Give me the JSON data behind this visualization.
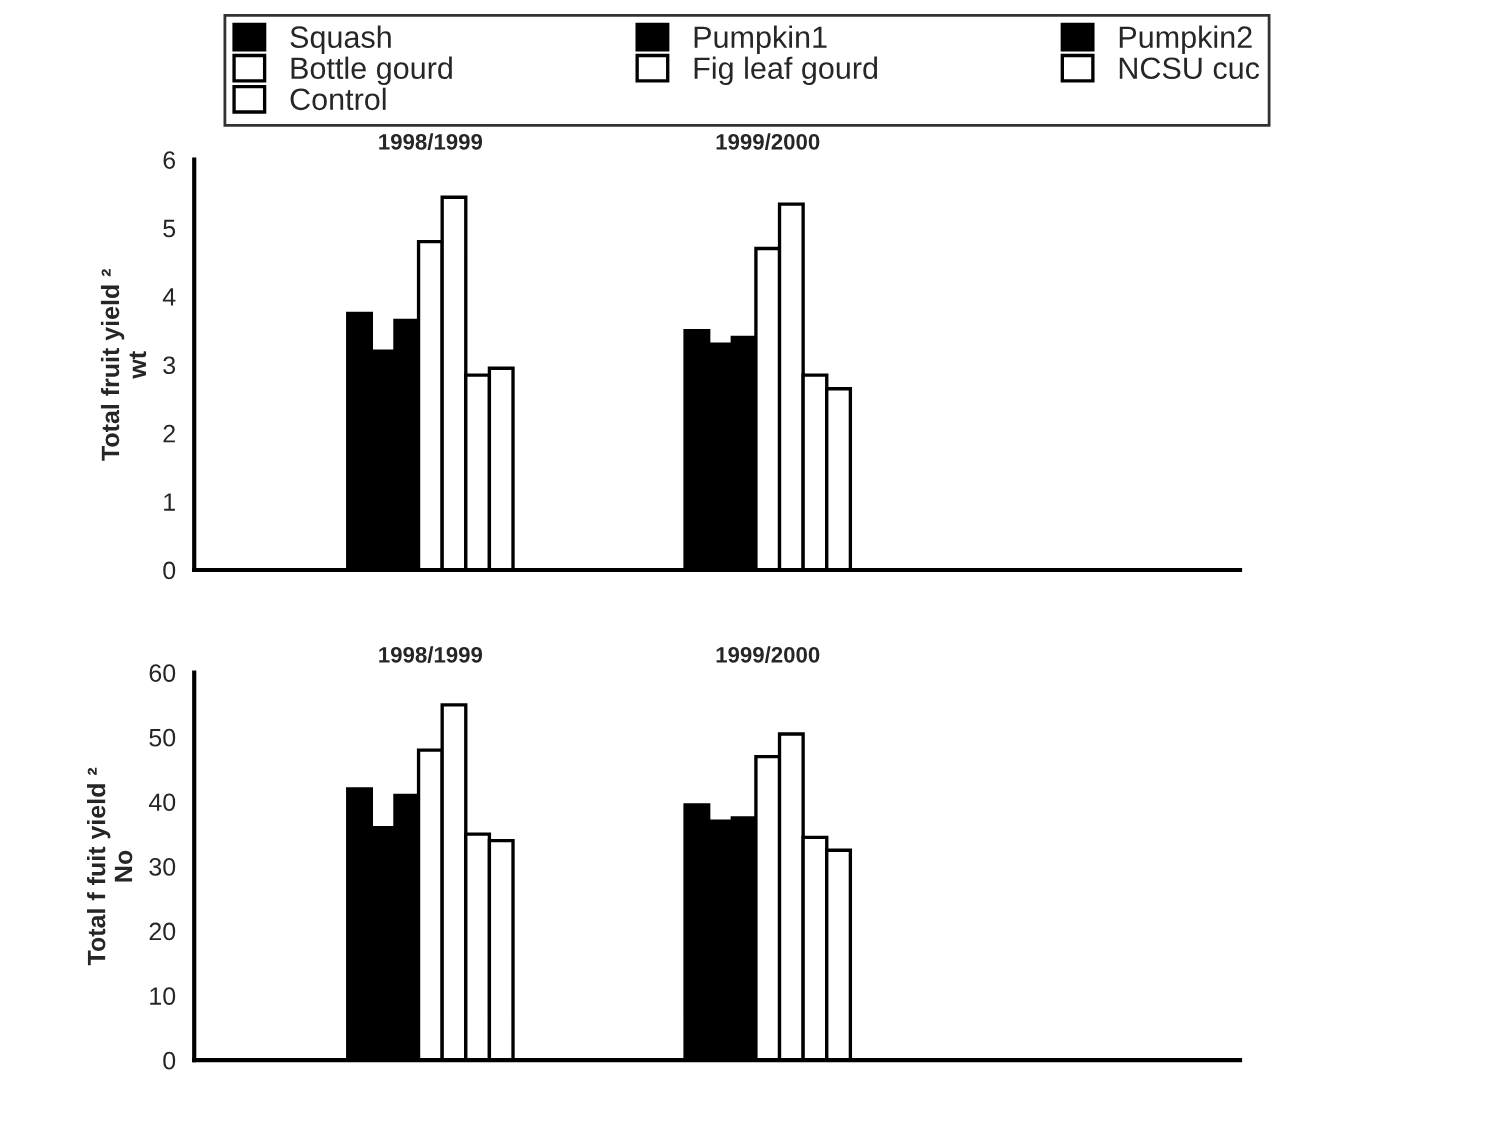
{
  "chart_data": [
    {
      "type": "bar",
      "ylabel": "Total fruit yield ²\nwt",
      "categories": [
        "1998/1999",
        "1999/2000",
        null
      ],
      "ylim": [
        0,
        6
      ],
      "yticks": [
        0,
        1,
        2,
        3,
        4,
        5,
        6
      ],
      "legend": "top",
      "grid": false,
      "series": [
        {
          "name": "Squash",
          "color": "#000000",
          "values": [
            3.75,
            3.5,
            null
          ]
        },
        {
          "name": "Pumpkin1",
          "color": "#000000",
          "values": [
            3.2,
            3.3,
            null
          ]
        },
        {
          "name": "Pumpkin2",
          "color": "#000000",
          "values": [
            3.65,
            3.4,
            null
          ]
        },
        {
          "name": "Bottle gourd",
          "color": "#ffffff",
          "values": [
            4.8,
            4.7,
            null
          ]
        },
        {
          "name": "Fig leaf gourd",
          "color": "#ffffff",
          "values": [
            5.45,
            5.35,
            null
          ]
        },
        {
          "name": "NCSU cuc",
          "color": "#ffffff",
          "values": [
            2.85,
            2.85,
            null
          ]
        },
        {
          "name": "Control",
          "color": "#ffffff",
          "values": [
            2.95,
            2.65,
            null
          ]
        }
      ]
    },
    {
      "type": "bar",
      "ylabel": "Total f fuit yield ²\nNo",
      "categories": [
        "1998/1999",
        "1999/2000",
        null
      ],
      "ylim": [
        0,
        60
      ],
      "yticks": [
        0,
        10,
        20,
        30,
        40,
        50,
        60
      ],
      "legend": false,
      "grid": false,
      "series": [
        {
          "color": "#000000",
          "values": [
            42,
            39.5,
            null
          ]
        },
        {
          "color": "#000000",
          "values": [
            36,
            37,
            null
          ]
        },
        {
          "color": "#000000",
          "values": [
            41,
            37.5,
            null
          ]
        },
        {
          "color": "#ffffff",
          "values": [
            48,
            47,
            null
          ]
        },
        {
          "color": "#ffffff",
          "values": [
            55,
            50.5,
            null
          ]
        },
        {
          "color": "#ffffff",
          "values": [
            35,
            34.5,
            null
          ]
        },
        {
          "color": "#ffffff",
          "values": [
            34,
            32.5,
            null
          ]
        }
      ]
    }
  ]
}
